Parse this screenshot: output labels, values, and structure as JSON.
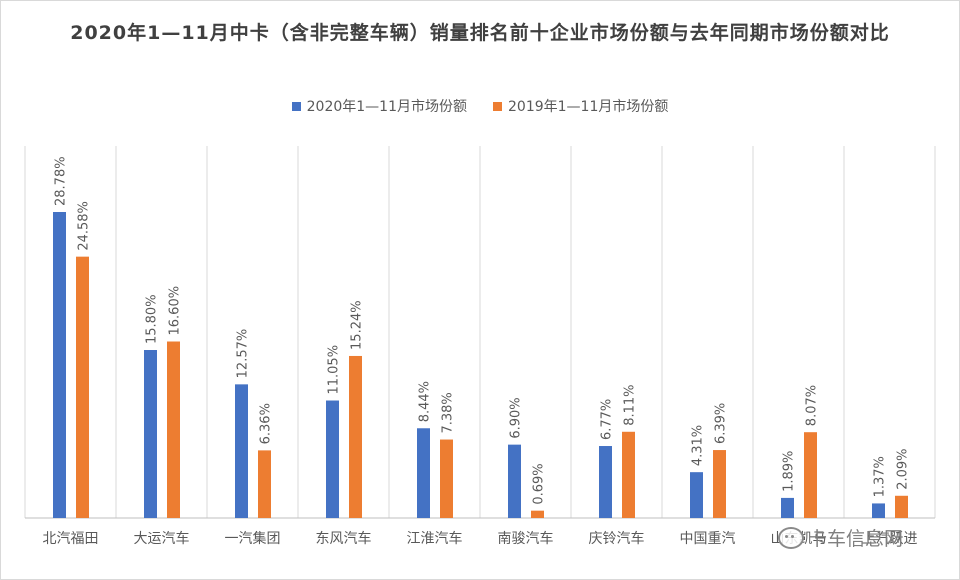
{
  "chart_data": {
    "type": "bar",
    "title": "2020年1—11月中卡（含非完整车辆）销量排名前十企业市场份额与去年同期市场份额对比",
    "categories": [
      "北汽福田",
      "大运汽车",
      "一汽集团",
      "东风汽车",
      "江淮汽车",
      "南骏汽车",
      "庆铃汽车",
      "中国重汽",
      "山东凯马",
      "上汽跃进"
    ],
    "series": [
      {
        "name": "2020年1—11月市场份额",
        "color": "#4472C4",
        "values": [
          28.78,
          15.8,
          12.57,
          11.05,
          8.44,
          6.9,
          6.77,
          4.31,
          1.89,
          1.37
        ],
        "labels": [
          "28.78%",
          "15.80%",
          "12.57%",
          "11.05%",
          "8.44%",
          "6.90%",
          "6.77%",
          "4.31%",
          "1.89%",
          "1.37%"
        ]
      },
      {
        "name": "2019年1—11月市场份额",
        "color": "#ED7D31",
        "values": [
          24.58,
          16.6,
          6.36,
          15.24,
          7.38,
          0.69,
          8.11,
          6.39,
          8.07,
          2.09
        ],
        "labels": [
          "24.58%",
          "16.60%",
          "6.36%",
          "15.24%",
          "7.38%",
          "0.69%",
          "8.11%",
          "6.39%",
          "8.07%",
          "2.09%"
        ]
      }
    ],
    "ylim": [
      0,
      30
    ],
    "grid": "vertical category separators",
    "legend_position": "top-center"
  },
  "watermark": {
    "text": "卡车信息网"
  }
}
